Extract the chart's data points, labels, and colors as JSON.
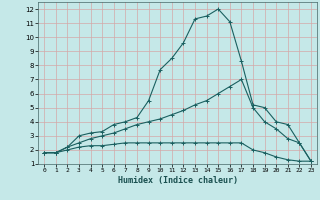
{
  "xlabel": "Humidex (Indice chaleur)",
  "xlim": [
    -0.5,
    23.5
  ],
  "ylim": [
    1,
    12.5
  ],
  "xticks": [
    0,
    1,
    2,
    3,
    4,
    5,
    6,
    7,
    8,
    9,
    10,
    11,
    12,
    13,
    14,
    15,
    16,
    17,
    18,
    19,
    20,
    21,
    22,
    23
  ],
  "yticks": [
    1,
    2,
    3,
    4,
    5,
    6,
    7,
    8,
    9,
    10,
    11,
    12
  ],
  "bg_color": "#c5e8e8",
  "grid_color": "#d4a8a8",
  "line_color": "#1a6060",
  "line1_x": [
    0,
    1,
    2,
    3,
    4,
    5,
    6,
    7,
    8,
    9,
    10,
    11,
    12,
    13,
    14,
    15,
    16,
    17,
    18,
    19,
    20,
    21,
    22,
    23
  ],
  "line1_y": [
    1.8,
    1.8,
    2.0,
    2.2,
    2.3,
    2.3,
    2.4,
    2.5,
    2.5,
    2.5,
    2.5,
    2.5,
    2.5,
    2.5,
    2.5,
    2.5,
    2.5,
    2.5,
    2.0,
    1.8,
    1.5,
    1.3,
    1.2,
    1.2
  ],
  "line2_x": [
    0,
    1,
    2,
    3,
    4,
    5,
    6,
    7,
    8,
    9,
    10,
    11,
    12,
    13,
    14,
    15,
    16,
    17,
    18,
    19,
    20,
    21,
    22,
    23
  ],
  "line2_y": [
    1.8,
    1.8,
    2.2,
    2.5,
    2.8,
    3.0,
    3.2,
    3.5,
    3.8,
    4.0,
    4.2,
    4.5,
    4.8,
    5.2,
    5.5,
    6.0,
    6.5,
    7.0,
    5.0,
    4.0,
    3.5,
    2.8,
    2.5,
    1.2
  ],
  "line3_x": [
    0,
    1,
    2,
    3,
    4,
    5,
    6,
    7,
    8,
    9,
    10,
    11,
    12,
    13,
    14,
    15,
    16,
    17,
    18,
    19,
    20,
    21,
    22,
    23
  ],
  "line3_y": [
    1.8,
    1.8,
    2.2,
    3.0,
    3.2,
    3.3,
    3.8,
    4.0,
    4.3,
    5.5,
    7.7,
    8.5,
    9.6,
    11.3,
    11.5,
    12.0,
    11.1,
    8.3,
    5.2,
    5.0,
    4.0,
    3.8,
    2.5,
    1.2
  ]
}
